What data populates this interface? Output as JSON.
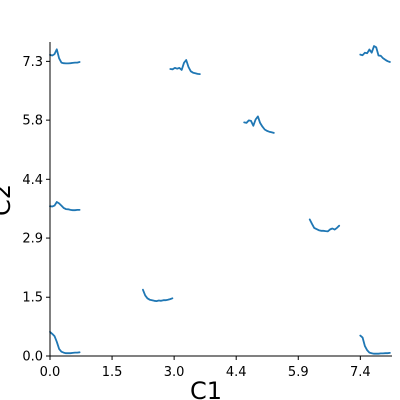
{
  "chart_data": {
    "type": "line",
    "title": "",
    "xlabel": "C1",
    "ylabel": "C2",
    "xlim": [
      0.0,
      8.1
    ],
    "ylim": [
      0.0,
      7.6
    ],
    "x_ticks": [
      "0.0",
      "1.5",
      "3.0",
      "4.4",
      "5.9",
      "7.4"
    ],
    "x_tick_values": [
      0.0,
      1.47,
      2.94,
      4.41,
      5.88,
      7.35
    ],
    "y_ticks": [
      "0.0",
      "1.5",
      "2.9",
      "4.4",
      "5.8",
      "7.3"
    ],
    "y_tick_values": [
      0.0,
      1.45,
      2.91,
      4.36,
      5.82,
      7.27
    ],
    "grid": false,
    "line_color": "#1f77b4",
    "glyph_width": 0.7,
    "glyph_height": 0.7,
    "glyphs": [
      {
        "center": [
          0.35,
          0.35
        ],
        "profile": [
          0.85,
          0.78,
          0.7,
          0.5,
          0.25,
          0.15,
          0.12,
          0.1,
          0.1,
          0.1,
          0.11,
          0.12,
          0.12,
          0.13
        ]
      },
      {
        "center": [
          0.35,
          3.85
        ],
        "profile": [
          0.28,
          0.27,
          0.3,
          0.43,
          0.38,
          0.3,
          0.22,
          0.18,
          0.17,
          0.15,
          0.14,
          0.14,
          0.15,
          0.15
        ]
      },
      {
        "center": [
          0.35,
          7.45
        ],
        "profile": [
          0.47,
          0.45,
          0.5,
          0.67,
          0.35,
          0.2,
          0.18,
          0.17,
          0.17,
          0.18,
          0.19,
          0.2,
          0.2,
          0.22
        ]
      },
      {
        "center": [
          2.55,
          1.6
        ],
        "profile": [
          0.55,
          0.35,
          0.25,
          0.2,
          0.18,
          0.16,
          0.15,
          0.17,
          0.16,
          0.18,
          0.18,
          0.2,
          0.22,
          0.25
        ]
      },
      {
        "center": [
          3.2,
          7.2
        ],
        "profile": [
          0.33,
          0.32,
          0.37,
          0.34,
          0.37,
          0.3,
          0.55,
          0.65,
          0.4,
          0.25,
          0.2,
          0.18,
          0.16,
          0.15
        ]
      },
      {
        "center": [
          4.95,
          5.8
        ],
        "profile": [
          0.45,
          0.43,
          0.52,
          0.5,
          0.33,
          0.55,
          0.66,
          0.43,
          0.3,
          0.2,
          0.15,
          0.12,
          0.1,
          0.08
        ]
      },
      {
        "center": [
          6.5,
          3.3
        ],
        "profile": [
          0.6,
          0.45,
          0.3,
          0.26,
          0.22,
          0.2,
          0.2,
          0.19,
          0.18,
          0.25,
          0.28,
          0.24,
          0.3,
          0.38
        ]
      },
      {
        "center": [
          7.7,
          0.35
        ],
        "profile": [
          0.72,
          0.65,
          0.35,
          0.2,
          0.12,
          0.1,
          0.08,
          0.08,
          0.08,
          0.09,
          0.09,
          0.1,
          0.1,
          0.11
        ]
      },
      {
        "center": [
          7.7,
          7.45
        ],
        "profile": [
          0.48,
          0.46,
          0.55,
          0.53,
          0.66,
          0.55,
          0.78,
          0.74,
          0.45,
          0.44,
          0.35,
          0.3,
          0.25,
          0.22
        ]
      }
    ]
  }
}
